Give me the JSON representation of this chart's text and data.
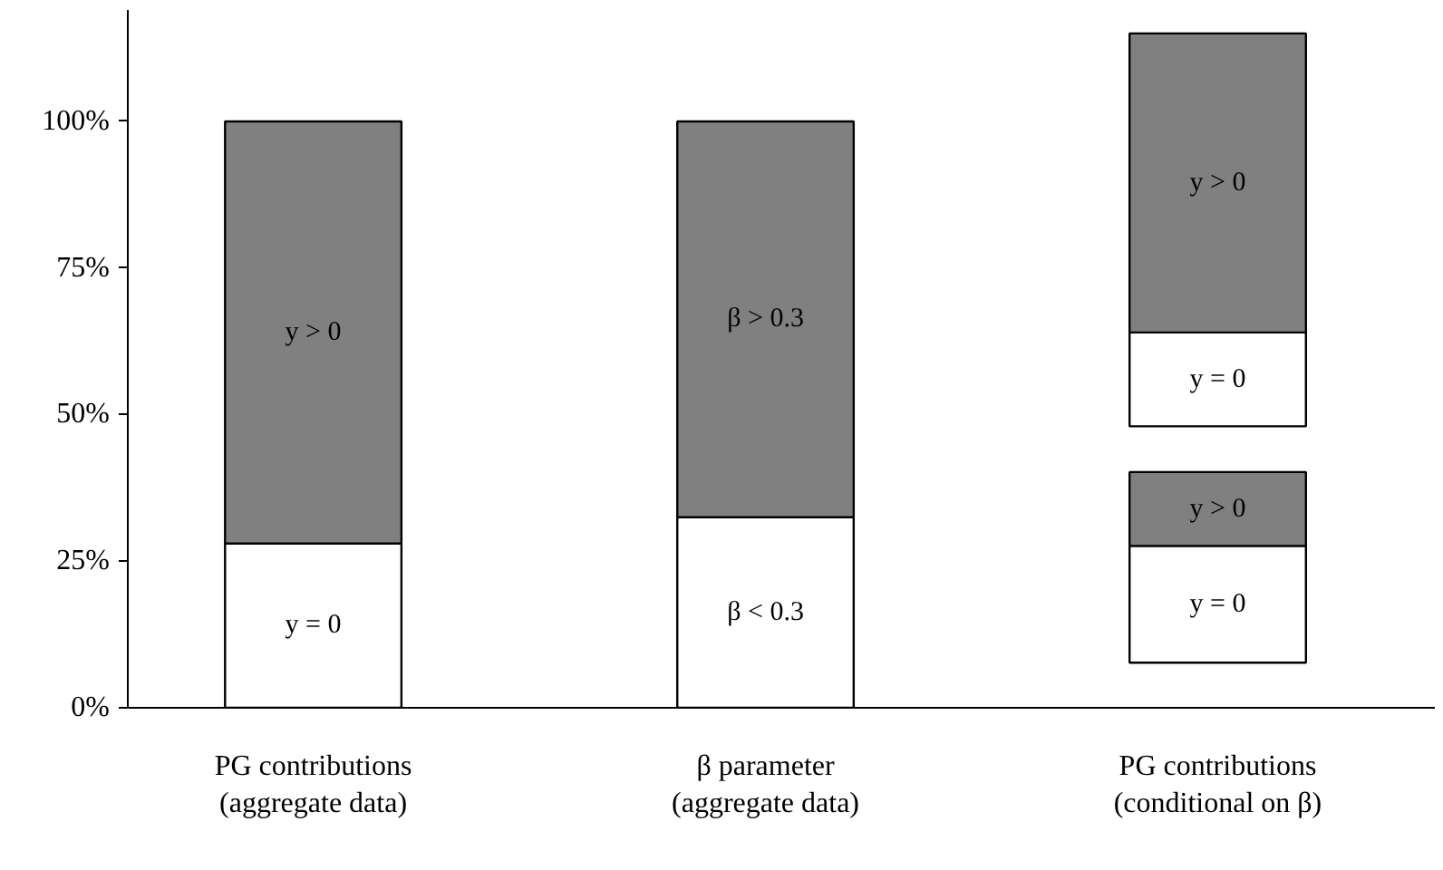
{
  "chart_data": {
    "type": "bar",
    "categories": [
      "PG contributions\n(aggregate data)",
      "β parameter\n(aggregate data)",
      "PG contributions\n(conditional on β)"
    ],
    "series": [
      {
        "color": "#ffffff",
        "base": [
          0,
          0,
          7.7
        ],
        "values": [
          28,
          32.5,
          19.9
        ]
      },
      {
        "color": "#808080",
        "base": [
          28,
          32.5,
          27.6
        ],
        "values": [
          72,
          67.5,
          12.6
        ]
      },
      {
        "color": "#ffffff",
        "base": [
          null,
          null,
          48
        ],
        "values": [
          null,
          null,
          16
        ]
      },
      {
        "color": "#808080",
        "base": [
          null,
          null,
          64
        ],
        "values": [
          null,
          null,
          51
        ]
      }
    ],
    "annotations": [
      "y = 0",
      "β < 0.3",
      "y = 0",
      "y > 0",
      "β > 0.3",
      "y > 0",
      "y = 0",
      "y > 0"
    ],
    "ylim": [
      0,
      119
    ],
    "yticks": [
      {
        "value": 0,
        "label": "0%"
      },
      {
        "value": 25,
        "label": "25%"
      },
      {
        "value": 50,
        "label": "50%"
      },
      {
        "value": 75,
        "label": "75%"
      },
      {
        "value": 100,
        "label": "100%"
      }
    ],
    "grid": false
  }
}
